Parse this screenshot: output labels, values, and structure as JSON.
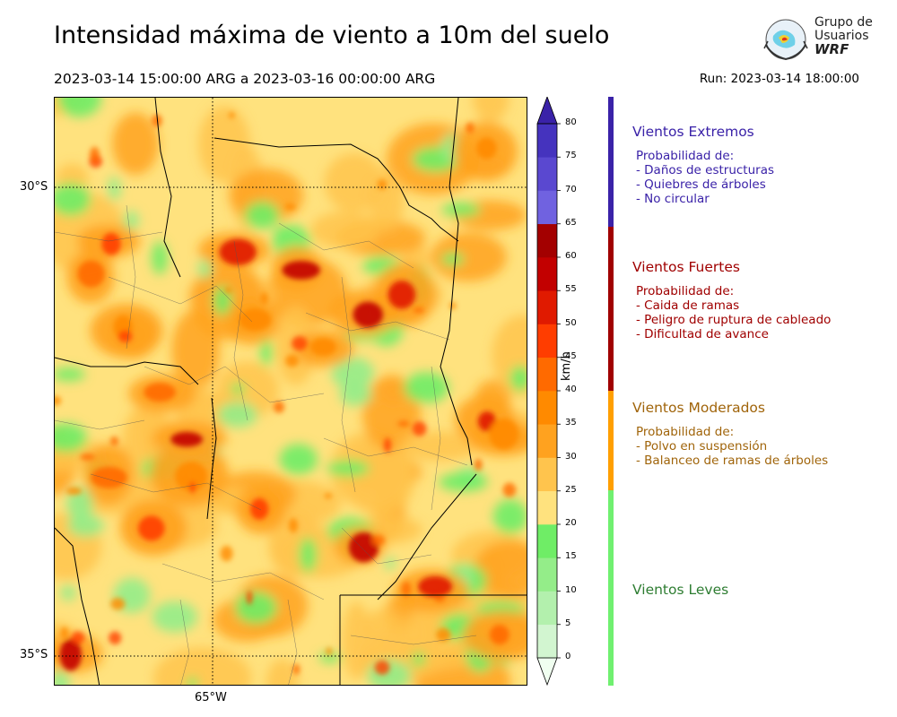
{
  "header": {
    "title": "Intensidad máxima de viento a 10m del suelo",
    "period": "2023-03-14 15:00:00 ARG  a  2023-03-16 00:00:00 ARG",
    "run": "Run: 2023-03-14 18:00:00"
  },
  "logo": {
    "line1": "Grupo de",
    "line2": "Usuarios",
    "line3": "WRF"
  },
  "map": {
    "lat_labels": [
      "30°S",
      "35°S"
    ],
    "lon_labels": [
      "65°W"
    ]
  },
  "colorbar": {
    "unit": "km/h",
    "ticks": [
      "0",
      "5",
      "10",
      "15",
      "20",
      "25",
      "30",
      "35",
      "40",
      "45",
      "50",
      "55",
      "60",
      "65",
      "70",
      "75",
      "80"
    ],
    "colors": [
      "#f0fff0",
      "#d2f5d0",
      "#b3f0ad",
      "#94ed89",
      "#6fed66",
      "#ffe27e",
      "#ffc44d",
      "#ffa21f",
      "#ff8a00",
      "#ff6a00",
      "#ff3d00",
      "#e01a00",
      "#c20000",
      "#a30000",
      "#7062e0",
      "#5a48d0",
      "#4533be",
      "#3a22a8"
    ]
  },
  "categories": [
    {
      "title": "Vientos Extremos",
      "color": "#3a22a8",
      "bar_color": "#3a22a8",
      "desc": [
        "Probabilidad de:",
        "- Daños de estructuras",
        "- Quiebres de árboles",
        "- No circular"
      ]
    },
    {
      "title": "Vientos Fuertes",
      "color": "#a00000",
      "bar_color": "#a00000",
      "desc": [
        "Probabilidad de:",
        "- Caida de ramas",
        "- Peligro de ruptura de cableado",
        "- Dificultad de avance"
      ]
    },
    {
      "title": "Vientos Moderados",
      "color": "#a0640a",
      "bar_color": "#ff9f00",
      "desc": [
        "Probabilidad de:",
        "- Polvo en suspensión",
        "- Balanceo de ramas de árboles"
      ]
    },
    {
      "title": "Vientos Leves",
      "color": "#2e7d32",
      "bar_color": "#70f070",
      "desc": []
    }
  ]
}
